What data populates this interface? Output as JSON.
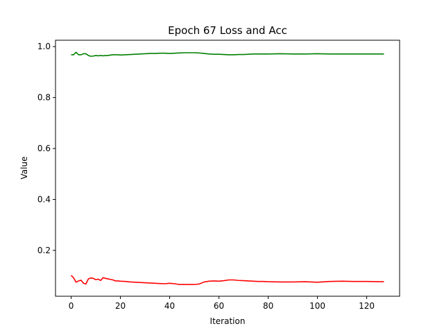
{
  "chart_data": {
    "type": "line",
    "title": "Epoch 67 Loss and Acc",
    "xlabel": "Iteration",
    "ylabel": "Value",
    "xlim": [
      -6.35,
      133.35
    ],
    "ylim": [
      0.02,
      1.025
    ],
    "x_ticks": [
      0,
      20,
      40,
      60,
      80,
      100,
      120
    ],
    "y_ticks": [
      0.2,
      0.4,
      0.6,
      0.8,
      1.0
    ],
    "grid": false,
    "series": [
      {
        "color": "#008000",
        "x": [
          0,
          1,
          2,
          3,
          4,
          5,
          6,
          7,
          8,
          9,
          10,
          11,
          12,
          13,
          14,
          15,
          16,
          17,
          18,
          19,
          20,
          22,
          24,
          26,
          28,
          30,
          32,
          34,
          36,
          38,
          40,
          42,
          44,
          46,
          48,
          50,
          52,
          54,
          56,
          58,
          60,
          62,
          64,
          66,
          68,
          70,
          72,
          74,
          76,
          78,
          80,
          85,
          90,
          95,
          100,
          105,
          110,
          115,
          120,
          125,
          127
        ],
        "y": [
          0.968,
          0.968,
          0.978,
          0.968,
          0.968,
          0.972,
          0.972,
          0.965,
          0.962,
          0.963,
          0.965,
          0.964,
          0.965,
          0.964,
          0.965,
          0.965,
          0.967,
          0.968,
          0.968,
          0.968,
          0.967,
          0.968,
          0.969,
          0.97,
          0.971,
          0.972,
          0.973,
          0.973,
          0.974,
          0.974,
          0.973,
          0.974,
          0.975,
          0.976,
          0.976,
          0.976,
          0.975,
          0.973,
          0.971,
          0.97,
          0.97,
          0.969,
          0.968,
          0.968,
          0.969,
          0.969,
          0.97,
          0.971,
          0.971,
          0.971,
          0.971,
          0.972,
          0.971,
          0.971,
          0.972,
          0.971,
          0.971,
          0.971,
          0.971,
          0.971,
          0.971
        ]
      },
      {
        "color": "#ff0000",
        "x": [
          0,
          1,
          2,
          3,
          4,
          5,
          6,
          7,
          8,
          9,
          10,
          11,
          12,
          13,
          14,
          15,
          16,
          17,
          18,
          19,
          20,
          22,
          24,
          26,
          28,
          30,
          32,
          34,
          36,
          38,
          40,
          42,
          44,
          46,
          48,
          50,
          52,
          54,
          56,
          58,
          60,
          62,
          64,
          66,
          68,
          70,
          72,
          74,
          76,
          78,
          80,
          85,
          90,
          95,
          100,
          105,
          110,
          115,
          120,
          125,
          127
        ],
        "y": [
          0.102,
          0.092,
          0.075,
          0.08,
          0.083,
          0.071,
          0.068,
          0.088,
          0.092,
          0.09,
          0.085,
          0.087,
          0.082,
          0.093,
          0.09,
          0.088,
          0.086,
          0.084,
          0.08,
          0.08,
          0.079,
          0.078,
          0.076,
          0.075,
          0.074,
          0.073,
          0.072,
          0.071,
          0.07,
          0.069,
          0.071,
          0.069,
          0.066,
          0.066,
          0.066,
          0.066,
          0.068,
          0.076,
          0.079,
          0.08,
          0.079,
          0.081,
          0.084,
          0.084,
          0.082,
          0.081,
          0.08,
          0.079,
          0.078,
          0.078,
          0.077,
          0.076,
          0.076,
          0.077,
          0.075,
          0.078,
          0.079,
          0.078,
          0.078,
          0.077,
          0.077
        ]
      }
    ]
  }
}
